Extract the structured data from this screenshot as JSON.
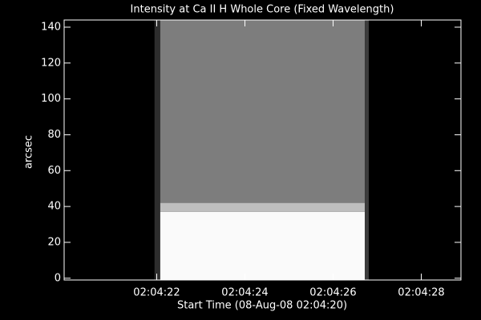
{
  "chart_data": {
    "type": "image",
    "title": "Intensity at Ca II H Whole Core (Fixed Wavelength)",
    "xlabel": "Start Time (08-Aug-08 02:04:20)",
    "ylabel": "arcsec",
    "xlim": [
      -0.1,
      8.9
    ],
    "ylim": [
      -1,
      144
    ],
    "xticks": [
      {
        "value": 2,
        "label": "02:04:22"
      },
      {
        "value": 4,
        "label": "02:04:24"
      },
      {
        "value": 6,
        "label": "02:04:26"
      },
      {
        "value": 8,
        "label": "02:04:28"
      }
    ],
    "yticks": [
      0,
      20,
      40,
      60,
      80,
      100,
      120,
      140
    ],
    "cells": [
      {
        "x": [
          1.95,
          2.08
        ],
        "y": [
          -1,
          144
        ],
        "level": 45
      },
      {
        "x": [
          2.08,
          6.72
        ],
        "y": [
          42,
          144
        ],
        "level": 125
      },
      {
        "x": [
          2.08,
          6.72
        ],
        "y": [
          37,
          42
        ],
        "level": 190
      },
      {
        "x": [
          2.08,
          6.72
        ],
        "y": [
          -1,
          37
        ],
        "level": 250
      },
      {
        "x": [
          6.72,
          6.81
        ],
        "y": [
          -1,
          144
        ],
        "level": 60
      }
    ]
  }
}
